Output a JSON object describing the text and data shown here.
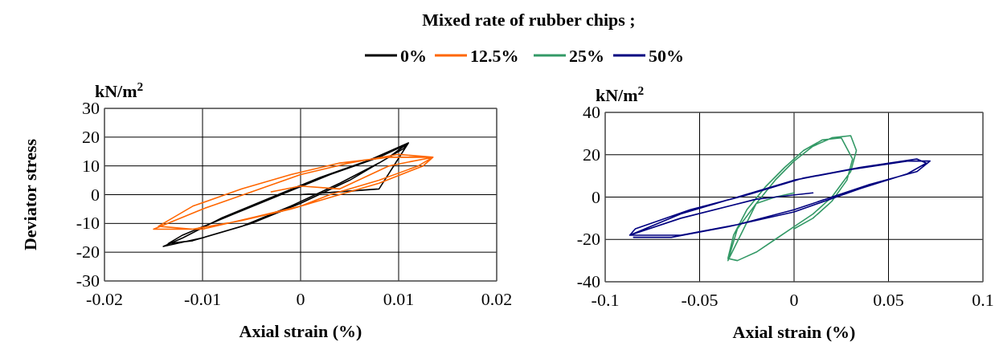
{
  "chart_data": [
    {
      "type": "line",
      "ylabel": "Deviator stress",
      "xlabel": "Axial strain (%)",
      "annotations": [
        "kN/m$^{2}$"
      ],
      "legend_title": "Mixed rate of rubber chips ;",
      "legend": "top",
      "grid": true,
      "xlim": [
        -0.02,
        0.02
      ],
      "xticks": [
        -0.02,
        -0.01,
        0,
        0.01,
        0.02
      ],
      "ylim": [
        -30,
        30
      ],
      "yticks": [
        -30,
        -20,
        -10,
        0,
        10,
        20,
        30
      ],
      "series": [
        {
          "name": "0%",
          "color": "#000000",
          "x": [
            0,
            0.004,
            0.008,
            0.011,
            0.009,
            0.005,
            0,
            -0.005,
            -0.01,
            -0.014,
            -0.012,
            -0.008,
            -0.003,
            0.002,
            0.007,
            0.011,
            0.0105,
            0.008,
            0.004,
            -0.001,
            -0.006,
            -0.011,
            -0.0135,
            -0.012,
            -0.007,
            -0.002,
            0.003,
            0.008,
            0.0105
          ],
          "values": [
            0,
            1,
            2,
            18,
            13,
            5,
            -3,
            -10,
            -15,
            -18,
            -15,
            -8,
            -1,
            6,
            12,
            18,
            16,
            11,
            4,
            -4,
            -11,
            -16,
            -17,
            -14,
            -7,
            0,
            7,
            13,
            17
          ]
        },
        {
          "name": "12.5%",
          "color": "#ff6600",
          "x": [
            -0.003,
            0,
            0.004,
            0.009,
            0.0135,
            0.012,
            0.008,
            0.003,
            0,
            -0.005,
            -0.01,
            -0.015,
            -0.01,
            -0.005,
            0,
            0.005,
            0.01,
            0.0135,
            0.0125,
            0.008,
            0.003,
            -0.001,
            -0.006,
            -0.011,
            -0.0145,
            -0.011,
            -0.006,
            -0.001,
            0.004,
            0.009,
            0.013
          ],
          "values": [
            1,
            3,
            2,
            10,
            13,
            10,
            5,
            0,
            -4,
            -8,
            -12,
            -12,
            -5,
            1,
            7,
            11,
            14,
            13,
            10,
            4,
            -1,
            -5,
            -9,
            -12,
            -11,
            -4,
            2,
            7,
            11,
            13,
            13
          ]
        }
      ]
    },
    {
      "type": "line",
      "xlabel": "Axial strain (%)",
      "annotations": [
        "kN/m$^{2}$"
      ],
      "legend": "top",
      "grid": true,
      "xlim": [
        -0.1,
        0.1
      ],
      "xticks": [
        -0.1,
        -0.05,
        0,
        0.05,
        0.1
      ],
      "ylim": [
        -40,
        40
      ],
      "yticks": [
        -40,
        -20,
        0,
        20,
        40
      ],
      "series": [
        {
          "name": "25%",
          "color": "#339966",
          "x": [
            0,
            -0.01,
            -0.02,
            -0.035,
            -0.03,
            -0.02,
            -0.01,
            0,
            0.01,
            0.02,
            0.03,
            0.033,
            0.03,
            0.02,
            0.01,
            0,
            -0.01,
            -0.02,
            -0.03,
            -0.035,
            -0.032,
            -0.025,
            -0.015,
            -0.005,
            0.005,
            0.015,
            0.025,
            0.031,
            0.028,
            0.02,
            0.01,
            0
          ],
          "values": [
            2,
            0,
            -3,
            -30,
            -15,
            -3,
            8,
            17,
            24,
            28,
            29,
            22,
            12,
            0,
            -8,
            -14,
            -20,
            -26,
            -30,
            -29,
            -18,
            -6,
            5,
            14,
            22,
            27,
            28,
            18,
            8,
            -2,
            -10,
            -15
          ]
        },
        {
          "name": "50%",
          "color": "#000080",
          "x": [
            0.01,
            -0.01,
            -0.02,
            -0.06,
            -0.087,
            -0.06,
            -0.03,
            0,
            0.03,
            0.06,
            0.072,
            0.065,
            0.04,
            0,
            -0.03,
            -0.06,
            -0.087,
            -0.084,
            -0.055,
            -0.025,
            0.005,
            0.035,
            0.065,
            0.07,
            0.06,
            0.035,
            0,
            -0.035,
            -0.065,
            -0.085
          ],
          "values": [
            2,
            0,
            -1,
            -10,
            -18,
            -8,
            0,
            8,
            13,
            17,
            17,
            12,
            6,
            -6,
            -13,
            -18,
            -18,
            -15,
            -6,
            1,
            9,
            14,
            18,
            16,
            11,
            4,
            -7,
            -14,
            -19,
            -19
          ]
        }
      ]
    }
  ]
}
